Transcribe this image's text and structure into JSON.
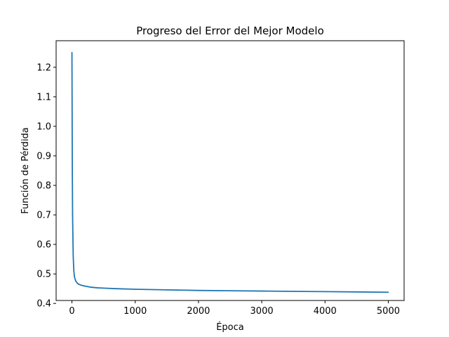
{
  "chart_data": {
    "type": "line",
    "title": "Progreso del Error del Mejor Modelo",
    "xlabel": "Época",
    "ylabel": "Función de Pérdida",
    "xlim": [
      -250,
      5250
    ],
    "ylim": [
      0.41,
      1.29
    ],
    "x_ticks": [
      0,
      1000,
      2000,
      3000,
      4000,
      5000
    ],
    "x_tick_labels": [
      "0",
      "1000",
      "2000",
      "3000",
      "4000",
      "5000"
    ],
    "y_ticks": [
      0.4,
      0.5,
      0.6,
      0.7,
      0.8,
      0.9,
      1.0,
      1.1,
      1.2
    ],
    "y_tick_labels": [
      "0.4",
      "0.5",
      "0.6",
      "0.7",
      "0.8",
      "0.9",
      "1.0",
      "1.1",
      "1.2"
    ],
    "grid": false,
    "legend": "none",
    "series": [
      {
        "color": "#1f77b4",
        "x": [
          0,
          5,
          10,
          20,
          30,
          40,
          60,
          80,
          100,
          130,
          160,
          200,
          300,
          400,
          500,
          700,
          1000,
          1500,
          2000,
          2500,
          3000,
          3500,
          4000,
          4500,
          5000
        ],
        "y": [
          1.25,
          0.9,
          0.7,
          0.56,
          0.51,
          0.49,
          0.476,
          0.47,
          0.466,
          0.463,
          0.461,
          0.459,
          0.455,
          0.453,
          0.452,
          0.45,
          0.448,
          0.446,
          0.444,
          0.443,
          0.442,
          0.441,
          0.44,
          0.439,
          0.438
        ]
      }
    ]
  }
}
